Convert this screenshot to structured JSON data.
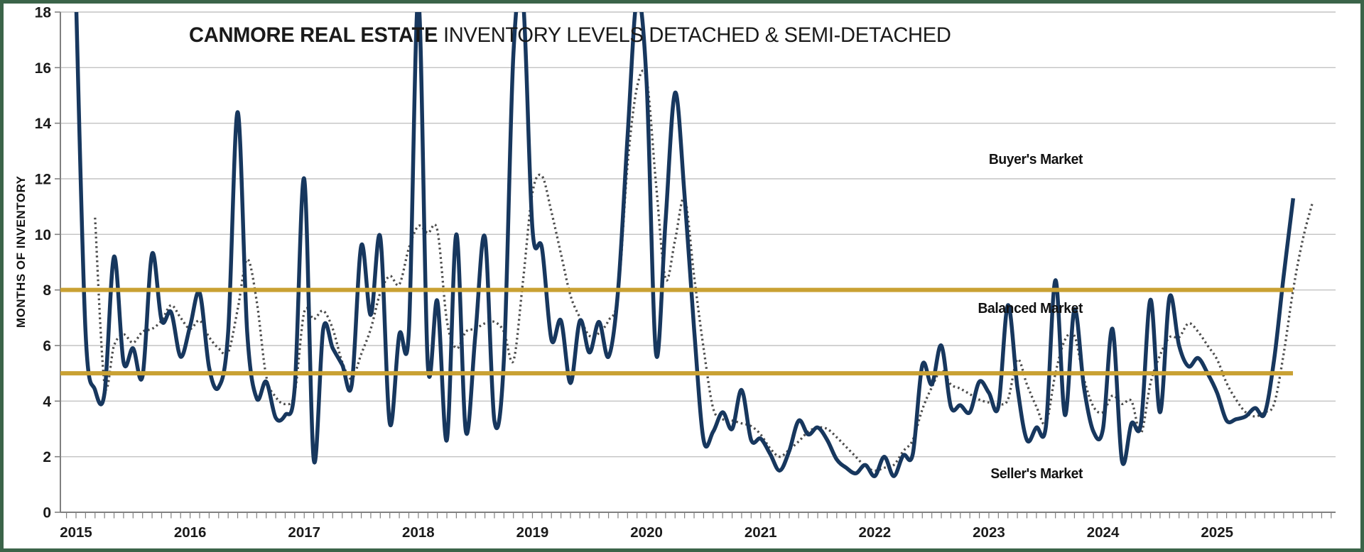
{
  "title": {
    "bold": "CANMORE REAL ESTATE",
    "rest": " INVENTORY LEVELS DETACHED & SEMI-DETACHED"
  },
  "y_axis": {
    "label": "MONTHS OF INVENTORY",
    "ticks": [
      0,
      2,
      4,
      6,
      8,
      10,
      12,
      14,
      16,
      18
    ],
    "min": 0,
    "max": 18
  },
  "x_axis": {
    "years": [
      "2015",
      "2016",
      "2017",
      "2018",
      "2019",
      "2020",
      "2021",
      "2022",
      "2023",
      "2024",
      "2025"
    ],
    "minor_ticks": "monthly"
  },
  "annotations": {
    "buyers": "Buyer's Market",
    "balanced": "Balanced Market",
    "sellers": "Seller's Market"
  },
  "colors": {
    "solid_line": "#17375E",
    "dotted_line": "#4D4D4D",
    "reference_line": "#C9A133",
    "gridline": "#C3C3C3",
    "axis": "#808080",
    "text": "#1a1a1a",
    "frame": "#3B6449"
  },
  "chart_data": {
    "type": "line",
    "title": "CANMORE REAL ESTATE INVENTORY LEVELS DETACHED & SEMI-DETACHED",
    "xlabel": "",
    "ylabel": "MONTHS OF INVENTORY",
    "ylim": [
      0,
      18
    ],
    "grid": true,
    "legend_position": "none",
    "x_start": "2015-01",
    "x_end": "2025-11",
    "frequency": "monthly",
    "note_values_above_18_are_clipped_at_plot_top": true,
    "reference_lines": [
      {
        "name": "balanced-upper",
        "value": 8
      },
      {
        "name": "balanced-lower",
        "value": 5
      }
    ],
    "series": [
      {
        "name": "Detached",
        "style": "solid",
        "color": "#17375E",
        "values": [
          18.5,
          6.5,
          4.4,
          4.3,
          9.2,
          5.4,
          5.9,
          4.9,
          9.3,
          6.9,
          7.2,
          5.6,
          6.7,
          7.9,
          5.2,
          4.5,
          6.5,
          14.4,
          6.5,
          4.1,
          4.7,
          3.4,
          3.5,
          4.5,
          12,
          1.9,
          6.6,
          5.9,
          5.3,
          4.6,
          9.6,
          7.1,
          9.9,
          3.2,
          6.4,
          6.5,
          18.5,
          5.3,
          7.6,
          2.6,
          10,
          2.9,
          6.4,
          9.9,
          3.3,
          5.5,
          16.5,
          18.5,
          10.2,
          9.5,
          6.2,
          6.9,
          4.65,
          6.9,
          5.75,
          6.85,
          5.6,
          7.95,
          13.5,
          18.5,
          15.5,
          5.7,
          10.5,
          15.1,
          11.4,
          6.6,
          2.6,
          2.9,
          3.6,
          3,
          4.4,
          2.6,
          2.65,
          2.1,
          1.5,
          2.2,
          3.3,
          2.8,
          3.05,
          2.6,
          1.9,
          1.6,
          1.4,
          1.7,
          1.3,
          2,
          1.3,
          2.05,
          2.1,
          5.3,
          4.6,
          6,
          3.8,
          3.85,
          3.6,
          4.7,
          4.3,
          3.8,
          7.45,
          4.5,
          2.6,
          3.05,
          3.1,
          8.35,
          3.5,
          7.3,
          4.5,
          2.9,
          3,
          6.6,
          1.85,
          3.2,
          3.2,
          7.65,
          3.6,
          7.75,
          6,
          5.25,
          5.55,
          5,
          4.3,
          3.3,
          3.35,
          3.45,
          3.75,
          3.55,
          5.5,
          8.5,
          11.3,
          null,
          null
        ]
      },
      {
        "name": "Semi-Detached",
        "style": "dotted",
        "color": "#4D4D4D",
        "values": [
          null,
          null,
          10.6,
          4.6,
          6,
          6.4,
          6.1,
          6.5,
          6.6,
          6.9,
          7.45,
          7,
          6.6,
          6.9,
          6.3,
          5.9,
          5.75,
          7.3,
          9.1,
          7.6,
          4.9,
          4.15,
          3.9,
          4.3,
          7.2,
          6.95,
          7.25,
          6.6,
          5.4,
          4.8,
          5.7,
          6.6,
          7.9,
          8.5,
          8.2,
          9.5,
          10.3,
          10.05,
          10.15,
          6.9,
          5.9,
          6.5,
          6.6,
          6.8,
          6.85,
          6.5,
          5.45,
          8.3,
          11.5,
          12.1,
          10.8,
          9.3,
          7.8,
          7,
          6.35,
          6.45,
          6.9,
          7.8,
          12.5,
          15.3,
          15.6,
          11.8,
          8.4,
          9.8,
          11.3,
          8.5,
          5.9,
          3.75,
          3.35,
          3.3,
          3.2,
          3.1,
          2.8,
          2.3,
          2,
          2.25,
          2.55,
          2.9,
          3.05,
          3,
          2.7,
          2.35,
          2,
          1.65,
          1.5,
          1.6,
          1.7,
          2.2,
          2.6,
          3.7,
          4.5,
          5.1,
          4.6,
          4.45,
          4.25,
          4.05,
          3.95,
          3.9,
          4.05,
          5.5,
          4.6,
          3.8,
          3.2,
          5,
          6.2,
          6.35,
          4.8,
          3.8,
          3.6,
          4.2,
          3.9,
          4,
          2.85,
          4.65,
          5.65,
          6.3,
          6.3,
          6.8,
          6.5,
          6,
          5.5,
          4.65,
          4.05,
          3.6,
          3.45,
          3.6,
          3.9,
          5.7,
          8,
          9.8,
          11.1
        ]
      }
    ]
  }
}
